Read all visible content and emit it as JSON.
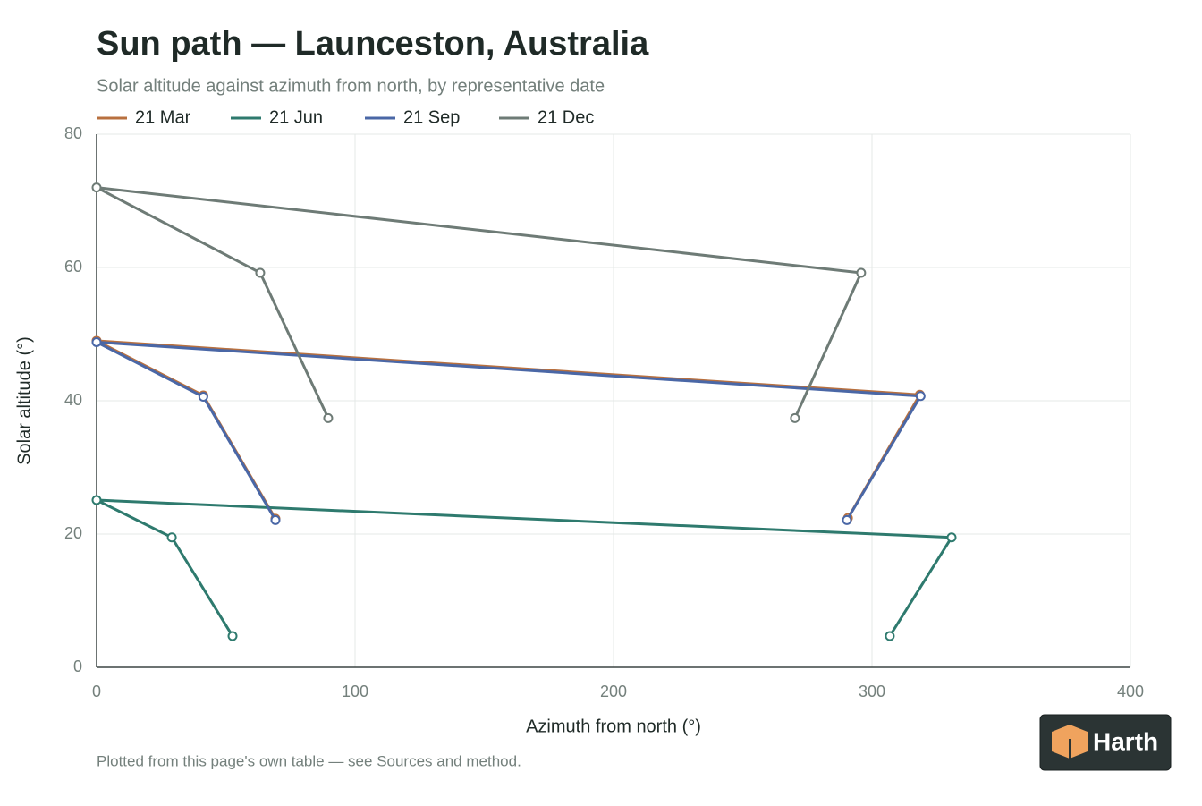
{
  "chart_data": {
    "type": "line",
    "title": "Sun path — Launceston, Australia",
    "subtitle": "Solar altitude against azimuth from north, by representative date",
    "x_label": "Azimuth from north (°)",
    "y_label": "Solar altitude (°)",
    "footnote": "Plotted from this page's own table — see Sources and method.",
    "logo": "Harth",
    "xlim": [
      0,
      400
    ],
    "xticks": [
      0,
      100,
      200,
      300,
      400
    ],
    "ylim": [
      0,
      80
    ],
    "yticks": [
      0,
      20,
      40,
      60,
      80
    ],
    "grid": true,
    "series": [
      {
        "name": "21 Mar",
        "color": "#b8703f",
        "x": [
          69.2,
          41.3,
          0,
          318.5,
          290.7
        ],
        "values": [
          22.3,
          40.8,
          49.0,
          40.9,
          22.4
        ]
      },
      {
        "name": "21 Jun",
        "color": "#2e7a6e",
        "x": [
          52.6,
          29.1,
          0,
          330.8,
          306.9
        ],
        "values": [
          4.7,
          19.5,
          25.1,
          19.5,
          4.7
        ]
      },
      {
        "name": "21 Sep",
        "color": "#4a67a6",
        "x": [
          69.2,
          41.3,
          0,
          318.8,
          290.3
        ],
        "values": [
          22.1,
          40.6,
          48.8,
          40.7,
          22.1
        ]
      },
      {
        "name": "21 Dec",
        "color": "#6e7b76",
        "x": [
          89.6,
          63.3,
          0,
          295.8,
          270.2
        ],
        "values": [
          37.4,
          59.2,
          72.0,
          59.2,
          37.4
        ]
      }
    ]
  }
}
